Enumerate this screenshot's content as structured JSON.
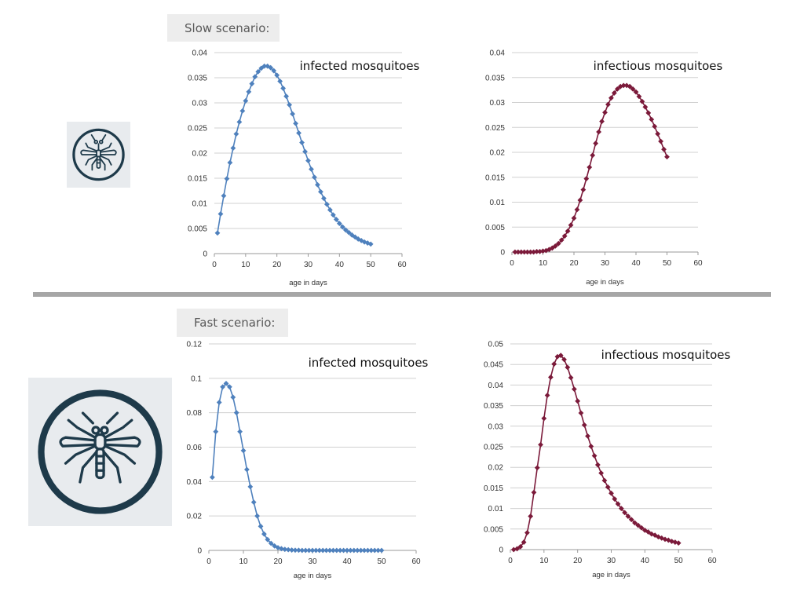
{
  "slow_scenario": {
    "label": "Slow scenario:"
  },
  "fast_scenario": {
    "label": "Fast scenario:"
  },
  "icons": {
    "small": "mosquito-icon",
    "large": "mosquito-icon",
    "color": "#1e3a4a"
  },
  "chart_data": [
    {
      "id": "slow-infected",
      "type": "line",
      "title": "infected mosquitoes",
      "xlabel": "age in days",
      "ylabel": "",
      "xlim": [
        0,
        60
      ],
      "ylim": [
        0,
        0.04
      ],
      "x_ticks": [
        "0",
        "10",
        "20",
        "30",
        "40",
        "50",
        "60"
      ],
      "y_ticks": [
        "0",
        "0.005",
        "0.01",
        "0.015",
        "0.02",
        "0.025",
        "0.03",
        "0.035",
        "0.04"
      ],
      "grid": "horizontal",
      "color": "#4f81bd",
      "marker": "diamond",
      "x": [
        1,
        2,
        3,
        4,
        5,
        6,
        7,
        8,
        9,
        10,
        11,
        12,
        13,
        14,
        15,
        16,
        17,
        18,
        19,
        20,
        21,
        22,
        23,
        24,
        25,
        26,
        27,
        28,
        29,
        30,
        31,
        32,
        33,
        34,
        35,
        36,
        37,
        38,
        39,
        40,
        41,
        42,
        43,
        44,
        45,
        46,
        47,
        48,
        49,
        50
      ],
      "y": [
        0.0041,
        0.0079,
        0.0115,
        0.0149,
        0.0181,
        0.021,
        0.0238,
        0.0262,
        0.0284,
        0.0304,
        0.0322,
        0.0338,
        0.0352,
        0.0362,
        0.0369,
        0.0373,
        0.0373,
        0.037,
        0.0364,
        0.0355,
        0.0343,
        0.0329,
        0.0313,
        0.0296,
        0.0278,
        0.0259,
        0.024,
        0.0221,
        0.0203,
        0.0185,
        0.0168,
        0.0152,
        0.0137,
        0.0123,
        0.011,
        0.0098,
        0.0087,
        0.0077,
        0.0068,
        0.006,
        0.0053,
        0.0047,
        0.0042,
        0.0037,
        0.0033,
        0.0029,
        0.0026,
        0.0023,
        0.0021,
        0.0019
      ]
    },
    {
      "id": "slow-infectious",
      "type": "line",
      "title": "infectious mosquitoes",
      "xlabel": "age in days",
      "ylabel": "",
      "xlim": [
        0,
        60
      ],
      "ylim": [
        0,
        0.04
      ],
      "x_ticks": [
        "0",
        "10",
        "20",
        "30",
        "40",
        "50",
        "60"
      ],
      "y_ticks": [
        "0",
        "0.005",
        "0.01",
        "0.015",
        "0.02",
        "0.025",
        "0.03",
        "0.035",
        "0.04"
      ],
      "grid": "horizontal",
      "color": "#7b1a3a",
      "marker": "diamond",
      "x": [
        1,
        2,
        3,
        4,
        5,
        6,
        7,
        8,
        9,
        10,
        11,
        12,
        13,
        14,
        15,
        16,
        17,
        18,
        19,
        20,
        21,
        22,
        23,
        24,
        25,
        26,
        27,
        28,
        29,
        30,
        31,
        32,
        33,
        34,
        35,
        36,
        37,
        38,
        39,
        40,
        41,
        42,
        43,
        44,
        45,
        46,
        47,
        48,
        49,
        50
      ],
      "y": [
        0,
        0,
        0,
        0,
        0,
        0,
        0,
        0.0001,
        0.0001,
        0.0002,
        0.0003,
        0.0005,
        0.0008,
        0.0012,
        0.0017,
        0.0024,
        0.0032,
        0.0042,
        0.0054,
        0.0068,
        0.0085,
        0.0104,
        0.0125,
        0.0147,
        0.017,
        0.0194,
        0.0218,
        0.0241,
        0.0262,
        0.028,
        0.0296,
        0.0309,
        0.0319,
        0.0327,
        0.0332,
        0.0334,
        0.0334,
        0.0332,
        0.0327,
        0.0321,
        0.0312,
        0.0302,
        0.0291,
        0.0279,
        0.0266,
        0.0252,
        0.0237,
        0.0222,
        0.0206,
        0.0191
      ]
    },
    {
      "id": "fast-infected",
      "type": "line",
      "title": "infected mosquitoes",
      "xlabel": "age in days",
      "ylabel": "",
      "xlim": [
        0,
        60
      ],
      "ylim": [
        0,
        0.12
      ],
      "x_ticks": [
        "0",
        "10",
        "20",
        "30",
        "40",
        "50",
        "60"
      ],
      "y_ticks": [
        "0",
        "0.02",
        "0.04",
        "0.06",
        "0.08",
        "0.1",
        "0.12"
      ],
      "grid": "horizontal",
      "color": "#4f81bd",
      "marker": "diamond",
      "x": [
        1,
        2,
        3,
        4,
        5,
        6,
        7,
        8,
        9,
        10,
        11,
        12,
        13,
        14,
        15,
        16,
        17,
        18,
        19,
        20,
        21,
        22,
        23,
        24,
        25,
        26,
        27,
        28,
        29,
        30,
        31,
        32,
        33,
        34,
        35,
        36,
        37,
        38,
        39,
        40,
        41,
        42,
        43,
        44,
        45,
        46,
        47,
        48,
        49,
        50
      ],
      "y": [
        0.0425,
        0.069,
        0.086,
        0.095,
        0.097,
        0.095,
        0.089,
        0.08,
        0.069,
        0.058,
        0.047,
        0.037,
        0.028,
        0.02,
        0.014,
        0.0095,
        0.0063,
        0.0041,
        0.0026,
        0.0016,
        0.001,
        0.0006,
        0.0004,
        0.0002,
        0.0001,
        0.0001,
        0,
        0,
        0,
        0,
        0,
        0,
        0,
        0,
        0,
        0,
        0,
        0,
        0,
        0,
        0,
        0,
        0,
        0,
        0,
        0,
        0,
        0,
        0,
        0
      ]
    },
    {
      "id": "fast-infectious",
      "type": "line",
      "title": "infectious mosquitoes",
      "xlabel": "age in days",
      "ylabel": "",
      "xlim": [
        0,
        60
      ],
      "ylim": [
        0,
        0.05
      ],
      "x_ticks": [
        "0",
        "10",
        "20",
        "30",
        "40",
        "50",
        "60"
      ],
      "y_ticks": [
        "0",
        "0.005",
        "0.01",
        "0.015",
        "0.02",
        "0.025",
        "0.03",
        "0.035",
        "0.04",
        "0.045",
        "0.05"
      ],
      "grid": "horizontal",
      "color": "#7b1a3a",
      "marker": "diamond",
      "x": [
        1,
        2,
        3,
        4,
        5,
        6,
        7,
        8,
        9,
        10,
        11,
        12,
        13,
        14,
        15,
        16,
        17,
        18,
        19,
        20,
        21,
        22,
        23,
        24,
        25,
        26,
        27,
        28,
        29,
        30,
        31,
        32,
        33,
        34,
        35,
        36,
        37,
        38,
        39,
        40,
        41,
        42,
        43,
        44,
        45,
        46,
        47,
        48,
        49,
        50
      ],
      "y": [
        0,
        0.0002,
        0.0007,
        0.0018,
        0.0041,
        0.0081,
        0.0139,
        0.0199,
        0.0255,
        0.0319,
        0.0375,
        0.0419,
        0.0451,
        0.0469,
        0.0472,
        0.0462,
        0.0443,
        0.0418,
        0.039,
        0.0361,
        0.0332,
        0.0303,
        0.0276,
        0.0251,
        0.0228,
        0.0206,
        0.0186,
        0.0168,
        0.0152,
        0.0137,
        0.0123,
        0.0111,
        0.01,
        0.009,
        0.0081,
        0.0073,
        0.0065,
        0.0059,
        0.0053,
        0.0047,
        0.0043,
        0.0038,
        0.0035,
        0.0031,
        0.0028,
        0.0025,
        0.0023,
        0.002,
        0.0018,
        0.0016
      ]
    }
  ]
}
